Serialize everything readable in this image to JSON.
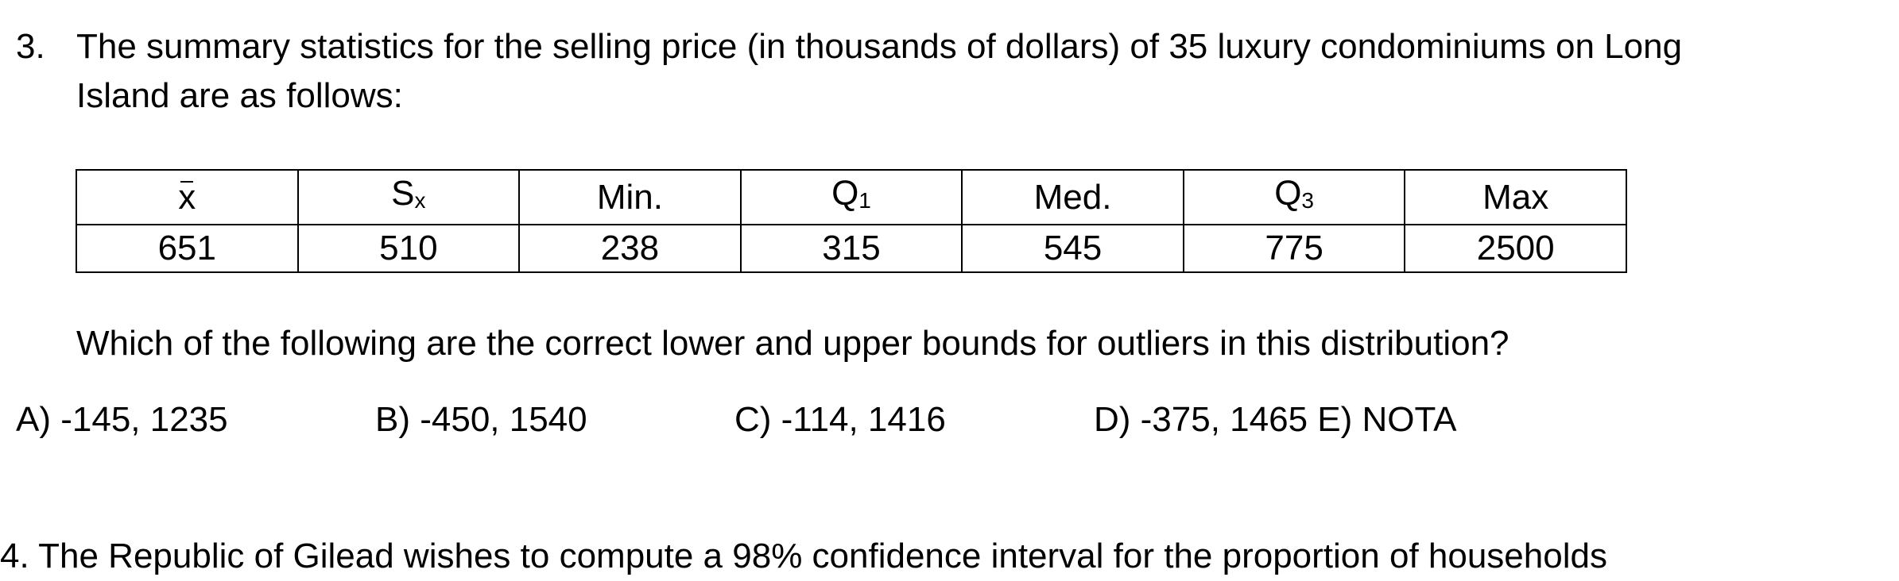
{
  "problem": {
    "number": "3.",
    "line1": "The summary statistics for the selling price (in thousands of dollars) of 35 luxury condominiums on Long",
    "line2": "Island are as follows:"
  },
  "table": {
    "headers": [
      {
        "main": "x",
        "sub": "",
        "bar": true
      },
      {
        "main": "S",
        "sub": "x",
        "bar": false
      },
      {
        "main": "Min.",
        "sub": "",
        "bar": false
      },
      {
        "main": "Q",
        "sub": "1",
        "bar": false
      },
      {
        "main": "Med.",
        "sub": "",
        "bar": false
      },
      {
        "main": "Q",
        "sub": "3",
        "bar": false
      },
      {
        "main": "Max",
        "sub": "",
        "bar": false
      }
    ],
    "values": [
      "651",
      "510",
      "238",
      "315",
      "545",
      "775",
      "2500"
    ]
  },
  "question": "Which of the following are the correct lower and upper bounds for outliers in this distribution?",
  "choices": [
    {
      "label": "A) -145, 1235"
    },
    {
      "label": "B) -450, 1540"
    },
    {
      "label": "C) -114, 1416"
    },
    {
      "label": "D) -375, 1465  E) NOTA"
    }
  ],
  "next_problem_partial": "4.   The Republic of Gilead wishes to compute a 98% confidence interval for the proportion of households"
}
